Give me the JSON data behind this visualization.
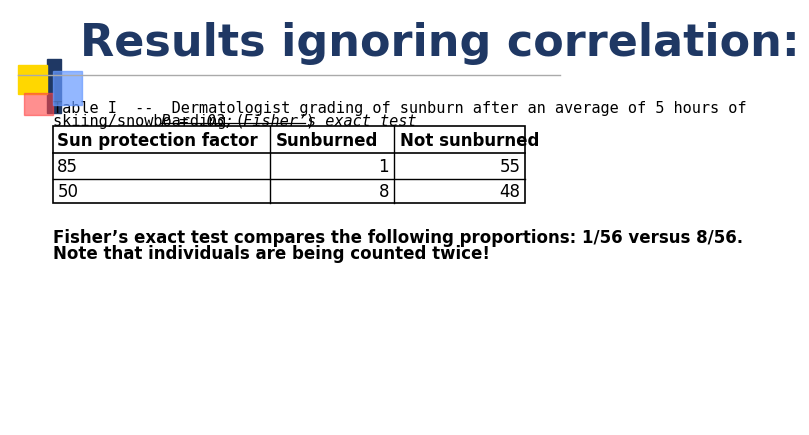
{
  "title": "Results ignoring correlation:",
  "title_color": "#1F3864",
  "title_fontsize": 32,
  "bg_color": "#FFFFFF",
  "caption_line1": "Table I  --  Dermatologist grading of sunburn after an average of 5 hours of",
  "caption_line2_normal": "skiing/snowboarding (",
  "caption_line2_italic_underline": "P = .03; Fisher’s exact test",
  "caption_line2_end": ")",
  "caption_fontsize": 11,
  "table_headers": [
    "Sun protection factor",
    "Sunburned",
    "Not sunburned"
  ],
  "table_rows": [
    [
      "85",
      "1",
      "55"
    ],
    [
      "50",
      "8",
      "48"
    ]
  ],
  "table_fontsize": 12,
  "footer_line1": "Fisher’s exact test compares the following proportions: 1/56 versus 8/56.",
  "footer_line2": "Note that individuals are being counted twice!",
  "footer_fontsize": 12,
  "accent_yellow": "#FFD700",
  "accent_blue_dark": "#1F3864",
  "accent_blue_light": "#6699FF",
  "accent_red": "#FF4444",
  "separator_color": "#AAAAAA"
}
